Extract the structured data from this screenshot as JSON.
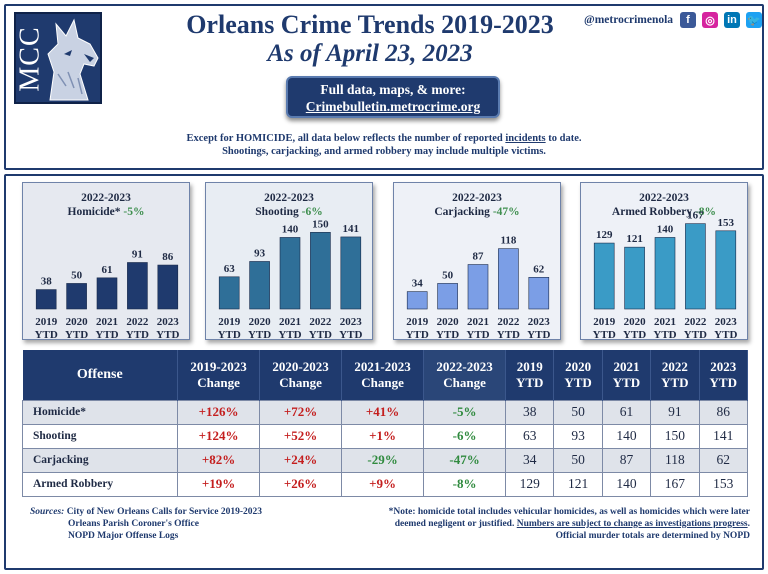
{
  "header": {
    "title": "Orleans Crime Trends 2019-2023",
    "subtitle": "As of April 23, 2023",
    "logo_text": "MCC",
    "social_handle": "@metrocrimenola",
    "social_icons": [
      {
        "icon": "facebook-icon",
        "glyph": "f",
        "color": "#3b5998"
      },
      {
        "icon": "instagram-icon",
        "glyph": "◎",
        "color": "#d6249f"
      },
      {
        "icon": "linkedin-icon",
        "glyph": "in",
        "color": "#0077b5"
      },
      {
        "icon": "twitter-icon",
        "glyph": "🐦",
        "color": "#1da1f2"
      }
    ]
  },
  "cta": {
    "line1": "Full data, maps, & more:",
    "line2": "Crimebulletin.metrocrime.org"
  },
  "note": {
    "line1_pre": "Except for HOMICIDE, all data below reflects the number of reported ",
    "line1_link": "incidents",
    "line1_post": " to date.",
    "line2": "Shootings, carjacking, and armed robbery may include multiple victims."
  },
  "chart_data": [
    {
      "type": "bar",
      "title_line1": "2022-2023",
      "title_line2": "Homicide*",
      "change": "-5%",
      "categories": [
        "2019 YTD",
        "2020 YTD",
        "2021 YTD",
        "2022 YTD",
        "2023 YTD"
      ],
      "values": [
        38,
        50,
        61,
        91,
        86
      ],
      "ylim": [
        0,
        180
      ],
      "bar_color": "#1f3a6e",
      "bg": "#e6e9f0"
    },
    {
      "type": "bar",
      "title_line1": "2022-2023",
      "title_line2": "Shooting",
      "change": "-6%",
      "categories": [
        "2019 YTD",
        "2020 YTD",
        "2021 YTD",
        "2022 YTD",
        "2023 YTD"
      ],
      "values": [
        63,
        93,
        140,
        150,
        141
      ],
      "ylim": [
        0,
        180
      ],
      "bar_color": "#2f6f98",
      "bg": "#e8edf3"
    },
    {
      "type": "bar",
      "title_line1": "2022-2023",
      "title_line2": "Carjacking",
      "change": "-47%",
      "categories": [
        "2019 YTD",
        "2020 YTD",
        "2021 YTD",
        "2022 YTD",
        "2023 YTD"
      ],
      "values": [
        34,
        50,
        87,
        118,
        62
      ],
      "ylim": [
        0,
        180
      ],
      "bar_color": "#7b9ee6",
      "bg": "#eef1f7"
    },
    {
      "type": "bar",
      "title_line1": "2022-2023",
      "title_line2": "Armed Robbery",
      "change": "-8%",
      "categories": [
        "2019 YTD",
        "2020 YTD",
        "2021 YTD",
        "2022 YTD",
        "2023 YTD"
      ],
      "values": [
        129,
        121,
        140,
        167,
        153
      ],
      "ylim": [
        0,
        180
      ],
      "bar_color": "#3a9bc6",
      "bg": "#eef1f7"
    }
  ],
  "table": {
    "headers": [
      {
        "l1": "Offense",
        "l2": ""
      },
      {
        "l1": "2019-2023",
        "l2": "Change"
      },
      {
        "l1": "2020-2023",
        "l2": "Change"
      },
      {
        "l1": "2021-2023",
        "l2": "Change"
      },
      {
        "l1": "2022-2023",
        "l2": "Change"
      },
      {
        "l1": "2019",
        "l2": "YTD"
      },
      {
        "l1": "2020",
        "l2": "YTD"
      },
      {
        "l1": "2021",
        "l2": "YTD"
      },
      {
        "l1": "2022",
        "l2": "YTD"
      },
      {
        "l1": "2023",
        "l2": "YTD"
      }
    ],
    "rows": [
      {
        "offense": "Homicide*",
        "changes": [
          "+126%",
          "+72%",
          "+41%",
          "-5%"
        ],
        "ytd": [
          "38",
          "50",
          "61",
          "91",
          "86"
        ]
      },
      {
        "offense": "Shooting",
        "changes": [
          "+124%",
          "+52%",
          "+1%",
          "-6%"
        ],
        "ytd": [
          "63",
          "93",
          "140",
          "150",
          "141"
        ]
      },
      {
        "offense": "Carjacking",
        "changes": [
          "+82%",
          "+24%",
          "-29%",
          "-47%"
        ],
        "ytd": [
          "34",
          "50",
          "87",
          "118",
          "62"
        ]
      },
      {
        "offense": "Armed Robbery",
        "changes": [
          "+19%",
          "+26%",
          "+9%",
          "-8%"
        ],
        "ytd": [
          "129",
          "121",
          "140",
          "167",
          "153"
        ]
      }
    ],
    "colors": {
      "increase": "#c41e1e",
      "decrease": "#2f8a3e"
    }
  },
  "footer": {
    "sources_label": "Sources:",
    "sources": [
      "City of New Orleans Calls for Service 2019-2023",
      "Orleans Parish Coroner's Office",
      "NOPD Major Offense Logs"
    ],
    "note_line1": "*Note: homicide total includes vehicular homicides, as well as homicides which were later",
    "note_line2_pre": "deemed negligent or justified. ",
    "note_line2_link": "Numbers are subject to change as investigations progress",
    "note_line2_post": ".",
    "note_line3": "Official murder totals are determined by NOPD"
  }
}
